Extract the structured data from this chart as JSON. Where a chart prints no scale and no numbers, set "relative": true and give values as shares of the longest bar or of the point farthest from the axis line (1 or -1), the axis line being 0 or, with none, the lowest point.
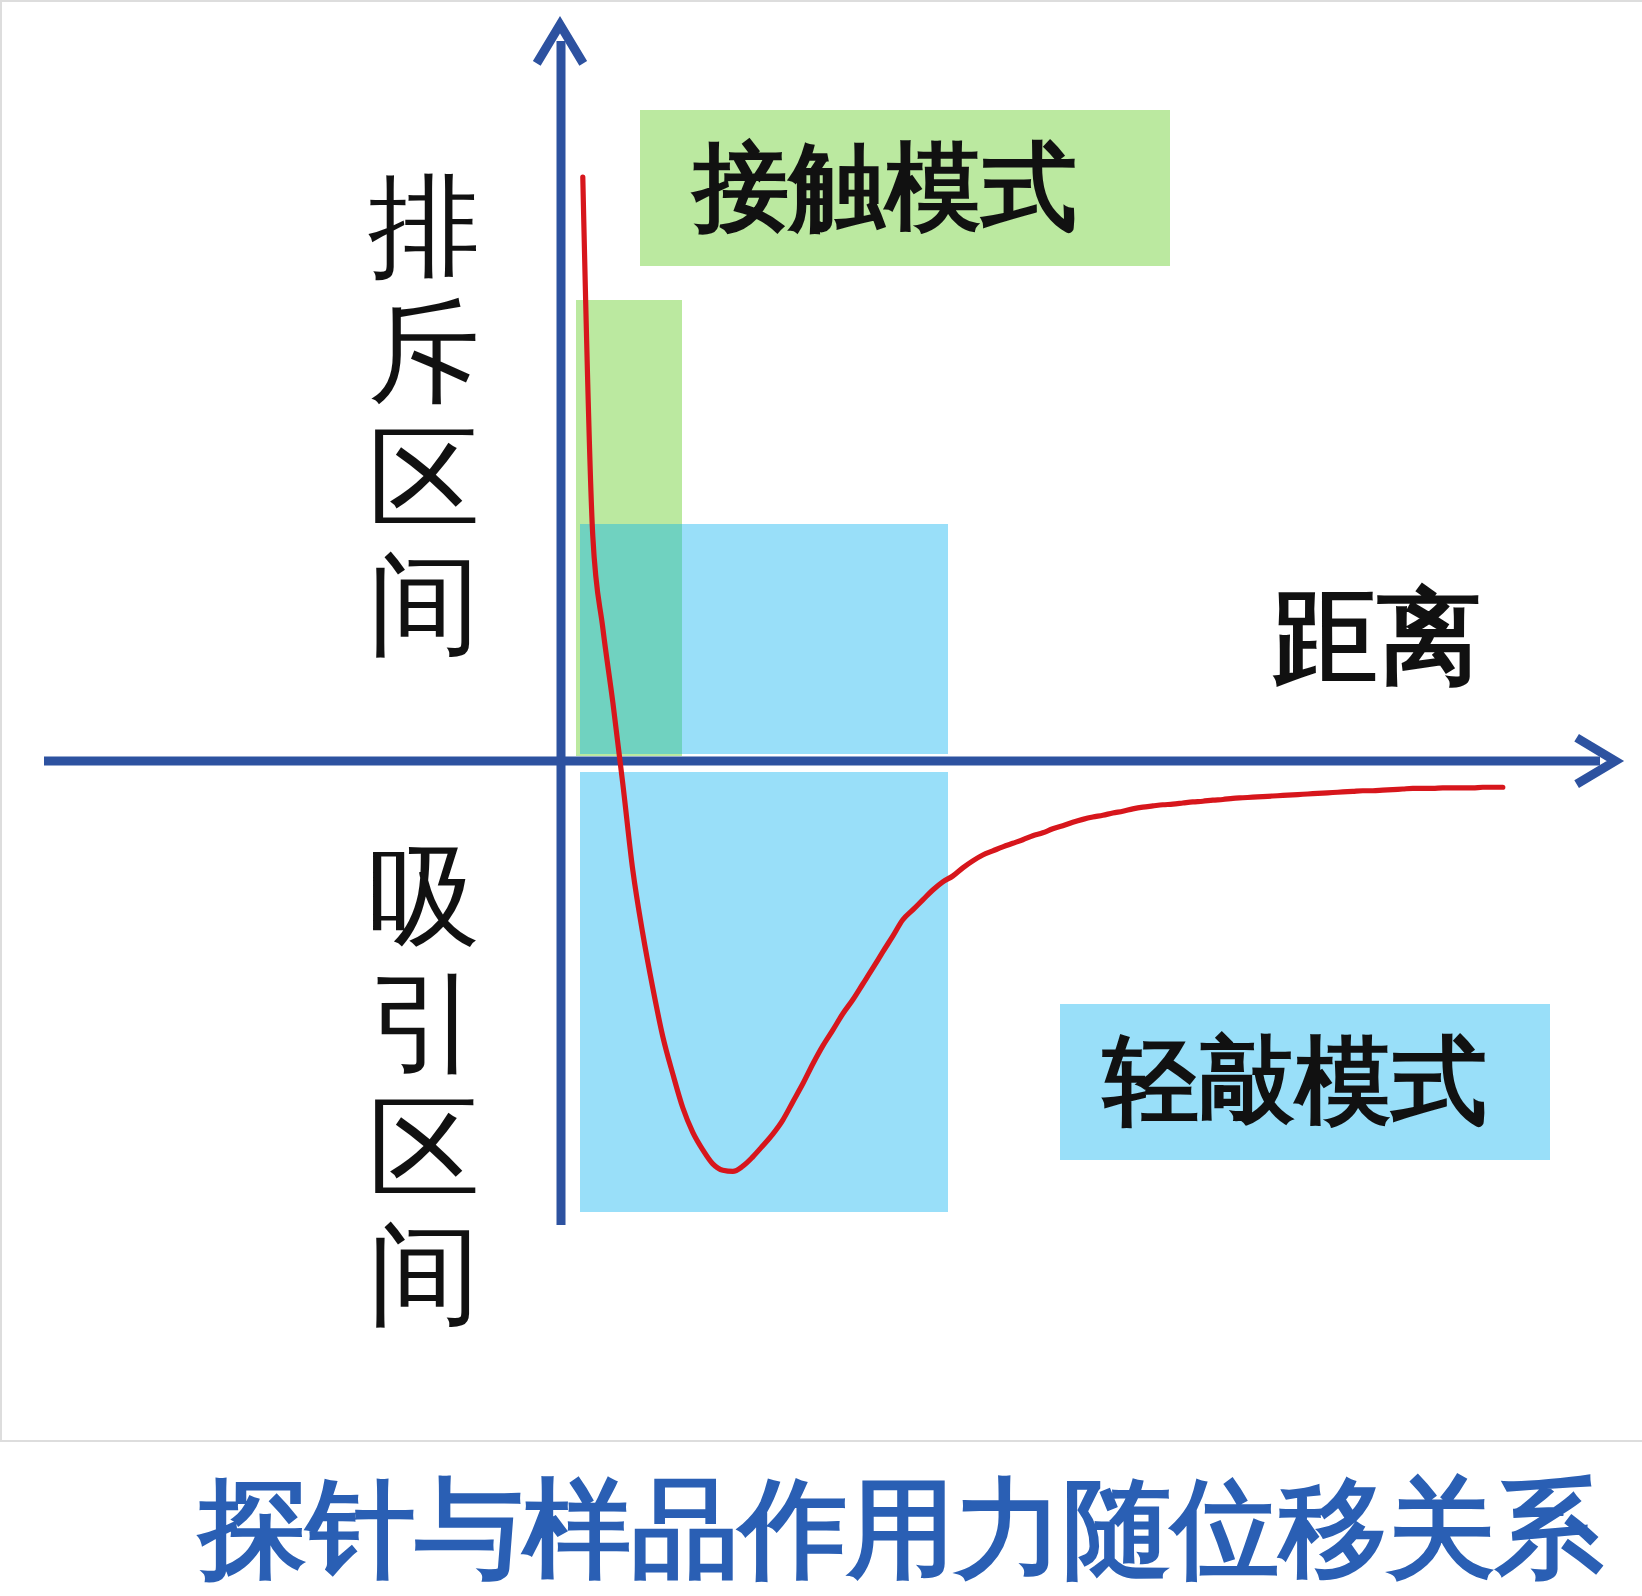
{
  "chart_data": {
    "type": "line",
    "title": "探针与样品作用力随位移关系",
    "xlabel": "距离",
    "relative": true,
    "categories": [
      null,
      null,
      null,
      null,
      null,
      null,
      null,
      null,
      null,
      null,
      null,
      null,
      null,
      null,
      null,
      null,
      null,
      null,
      null,
      null,
      null,
      null,
      null,
      null,
      null,
      null,
      null,
      null,
      null,
      null,
      null,
      null,
      null,
      null,
      null,
      null,
      null,
      null,
      null,
      null,
      null,
      null,
      null,
      null,
      null,
      null,
      null,
      null,
      null,
      null,
      null,
      null,
      null,
      null,
      null,
      null,
      null,
      null,
      null,
      null,
      null,
      null,
      null,
      null,
      null,
      null,
      null,
      null,
      null,
      null,
      null,
      null,
      null,
      null,
      null,
      null,
      null,
      null,
      null,
      null,
      null,
      null,
      null,
      null,
      null,
      null,
      null,
      null,
      null,
      null,
      null,
      null,
      null
    ],
    "series": [
      {
        "color": "#d7161c",
        "values": [
          1.0,
          0.385,
          0.228,
          0.101,
          -0.039,
          -0.187,
          -0.296,
          -0.389,
          -0.472,
          -0.536,
          -0.594,
          -0.636,
          -0.666,
          -0.69,
          -0.701,
          -0.703,
          -0.694,
          -0.678,
          -0.659,
          -0.639,
          -0.615,
          -0.584,
          -0.553,
          -0.519,
          -0.488,
          -0.461,
          -0.433,
          -0.409,
          -0.382,
          -0.355,
          -0.327,
          -0.3,
          -0.272,
          -0.255,
          -0.238,
          -0.221,
          -0.207,
          -0.197,
          -0.183,
          -0.171,
          -0.161,
          -0.154,
          -0.147,
          -0.141,
          -0.135,
          -0.128,
          -0.123,
          -0.116,
          -0.111,
          -0.105,
          -0.1,
          -0.096,
          -0.093,
          -0.089,
          -0.086,
          -0.082,
          -0.079,
          -0.077,
          -0.075,
          -0.074,
          -0.072,
          -0.07,
          -0.069,
          -0.067,
          -0.066,
          -0.064,
          -0.063,
          -0.062,
          -0.061,
          -0.06,
          -0.059,
          -0.058,
          -0.057,
          -0.056,
          -0.055,
          -0.054,
          -0.053,
          -0.052,
          -0.051,
          -0.051,
          -0.05,
          -0.049,
          -0.048,
          -0.047,
          -0.047,
          -0.047,
          -0.046,
          -0.046,
          -0.046,
          -0.046,
          -0.045,
          -0.045,
          -0.045
        ]
      }
    ],
    "ref_lines": [
      {
        "axis": "y",
        "value": 0,
        "color": "#2d52a0"
      }
    ],
    "annotations": [
      "排斥区间",
      "吸引区间",
      "接触模式",
      "轻敲模式"
    ]
  }
}
